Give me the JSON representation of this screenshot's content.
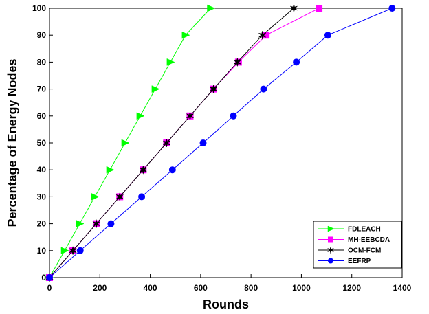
{
  "chart_data": {
    "type": "line",
    "title": "",
    "xlabel": "Rounds",
    "ylabel": "Percentage of Energy Nodes",
    "xlim": [
      0,
      1400
    ],
    "ylim": [
      0,
      100
    ],
    "xticks": [
      0,
      200,
      400,
      600,
      800,
      1000,
      1200,
      1400
    ],
    "yticks": [
      0,
      10,
      20,
      30,
      40,
      50,
      60,
      70,
      80,
      90,
      100
    ],
    "grid": false,
    "legend_position": "bottom-right",
    "series": [
      {
        "name": "FDLEACH",
        "color": "#00ff00",
        "marker": "triangle-right",
        "points": [
          [
            0,
            0
          ],
          [
            60,
            10
          ],
          [
            120,
            20
          ],
          [
            180,
            30
          ],
          [
            240,
            40
          ],
          [
            300,
            50
          ],
          [
            360,
            60
          ],
          [
            420,
            70
          ],
          [
            480,
            80
          ],
          [
            540,
            90
          ],
          [
            640,
            100
          ]
        ]
      },
      {
        "name": "MH-EEBCDA",
        "color": "#ff00ff",
        "marker": "square",
        "points": [
          [
            0,
            0
          ],
          [
            93,
            10
          ],
          [
            186,
            20
          ],
          [
            279,
            30
          ],
          [
            372,
            40
          ],
          [
            465,
            50
          ],
          [
            558,
            60
          ],
          [
            651,
            70
          ],
          [
            750,
            80
          ],
          [
            860,
            90
          ],
          [
            1070,
            100
          ]
        ]
      },
      {
        "name": "OCM-FCM",
        "color": "#000000",
        "marker": "star",
        "points": [
          [
            0,
            0
          ],
          [
            93,
            10
          ],
          [
            186,
            20
          ],
          [
            279,
            30
          ],
          [
            372,
            40
          ],
          [
            465,
            50
          ],
          [
            558,
            60
          ],
          [
            651,
            70
          ],
          [
            746,
            80
          ],
          [
            845,
            90
          ],
          [
            970,
            100
          ]
        ]
      },
      {
        "name": "EEFRP",
        "color": "#0000ff",
        "marker": "circle",
        "points": [
          [
            0,
            0
          ],
          [
            122,
            10
          ],
          [
            244,
            20
          ],
          [
            366,
            30
          ],
          [
            488,
            40
          ],
          [
            610,
            50
          ],
          [
            730,
            60
          ],
          [
            850,
            70
          ],
          [
            980,
            80
          ],
          [
            1105,
            90
          ],
          [
            1360,
            100
          ]
        ]
      }
    ]
  }
}
